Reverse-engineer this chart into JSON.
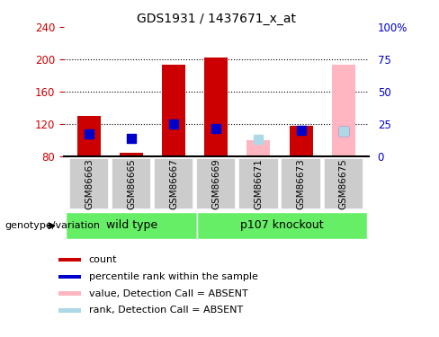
{
  "title": "GDS1931 / 1437671_x_at",
  "samples": [
    "GSM86663",
    "GSM86665",
    "GSM86667",
    "GSM86669",
    "GSM86671",
    "GSM86673",
    "GSM86675"
  ],
  "red_bars": [
    130,
    85,
    193,
    202,
    null,
    118,
    null
  ],
  "blue_dots": [
    108,
    103,
    120,
    115,
    null,
    113,
    112
  ],
  "pink_bars": [
    null,
    null,
    null,
    null,
    100,
    null,
    193
  ],
  "lightblue_dots": [
    null,
    null,
    null,
    null,
    102,
    null,
    112
  ],
  "ylim": [
    80,
    240
  ],
  "y_ticks": [
    80,
    120,
    160,
    200,
    240
  ],
  "y2_ticks": [
    0,
    25,
    50,
    75,
    100
  ],
  "y2_tick_labels": [
    "0",
    "25",
    "50",
    "75",
    "100%"
  ],
  "y_color": "#cc0000",
  "y2_color": "#0000cc",
  "bar_width": 0.55,
  "dot_size": 45,
  "group_label": "genotype/variation",
  "wt_color": "#66ee66",
  "ko_color": "#66ee66",
  "sample_box_color": "#cccccc",
  "legend_items": [
    {
      "label": "count",
      "color": "#cc0000"
    },
    {
      "label": "percentile rank within the sample",
      "color": "#0000cc"
    },
    {
      "label": "value, Detection Call = ABSENT",
      "color": "#ffb6c1"
    },
    {
      "label": "rank, Detection Call = ABSENT",
      "color": "#add8e6"
    }
  ]
}
